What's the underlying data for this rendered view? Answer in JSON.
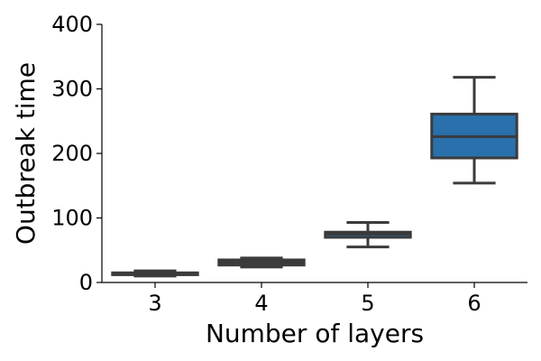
{
  "chart_data": {
    "type": "box",
    "xlabel": "Number of layers",
    "ylabel": "Outbreak time",
    "ylim": [
      0,
      400
    ],
    "yticks": [
      0,
      100,
      200,
      300,
      400
    ],
    "categories": [
      "3",
      "4",
      "5",
      "6"
    ],
    "boxes": [
      {
        "category": "3",
        "whisker_low": 10,
        "q1": 12,
        "median": 14,
        "q3": 15,
        "whisker_high": 18
      },
      {
        "category": "4",
        "whisker_low": 24,
        "q1": 27,
        "median": 31,
        "q3": 35,
        "whisker_high": 38
      },
      {
        "category": "5",
        "whisker_low": 55,
        "q1": 70,
        "median": 75,
        "q3": 78,
        "whisker_high": 93
      },
      {
        "category": "6",
        "whisker_low": 154,
        "q1": 193,
        "median": 226,
        "q3": 261,
        "whisker_high": 318
      }
    ],
    "box_color": "#2a70ac",
    "line_color": "#3b3b3b",
    "grid": false,
    "spines": [
      "left",
      "bottom"
    ]
  }
}
